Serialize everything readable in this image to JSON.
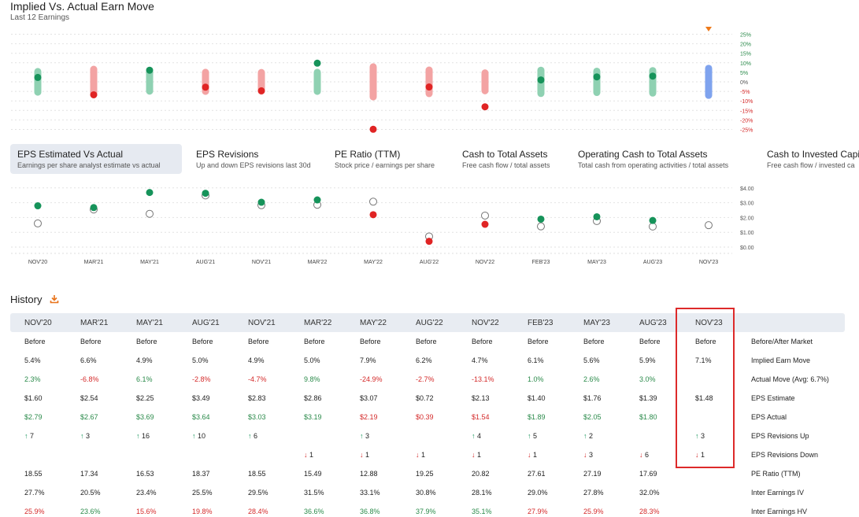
{
  "header": {
    "title": "Implied Vs. Actual Earn Move",
    "subtitle": "Last 12 Earnings"
  },
  "tabs": [
    {
      "label": "EPS Estimated Vs Actual",
      "desc": "Earnings per share analyst estimate vs actual",
      "active": true
    },
    {
      "label": "EPS Revisions",
      "desc": "Up and down EPS revisions last 30d",
      "active": false
    },
    {
      "label": "PE Ratio (TTM)",
      "desc": "Stock price / earnings per share",
      "active": false
    },
    {
      "label": "Cash to Total Assets",
      "desc": "Free cash flow / total assets",
      "active": false
    },
    {
      "label": "Operating Cash to Total Assets",
      "desc": "Total cash from operating activities / total assets",
      "active": false
    },
    {
      "label": "Cash to Invested Capit",
      "desc": "Free cash flow / invested ca",
      "active": false
    }
  ],
  "history": {
    "title": "History",
    "download_icon": "download-icon",
    "columns": [
      "NOV'20",
      "MAR'21",
      "MAY'21",
      "AUG'21",
      "NOV'21",
      "MAR'22",
      "MAY'22",
      "AUG'22",
      "NOV'22",
      "FEB'23",
      "MAY'23",
      "AUG'23",
      "NOV'23"
    ],
    "rows": [
      {
        "label": "Before/After Market",
        "values": [
          "Before",
          "Before",
          "Before",
          "Before",
          "Before",
          "Before",
          "Before",
          "Before",
          "Before",
          "Before",
          "Before",
          "Before",
          "Before"
        ]
      },
      {
        "label": "Implied Earn Move",
        "values": [
          "5.4%",
          "6.6%",
          "4.9%",
          "5.0%",
          "4.9%",
          "5.0%",
          "7.9%",
          "6.2%",
          "4.7%",
          "6.1%",
          "5.6%",
          "5.9%",
          "7.1%"
        ]
      },
      {
        "label": "Actual Move (Avg: 6.7%)",
        "values": [
          "2.3%",
          "-6.8%",
          "6.1%",
          "-2.8%",
          "-4.7%",
          "9.8%",
          "-24.9%",
          "-2.7%",
          "-13.1%",
          "1.0%",
          "2.6%",
          "3.0%",
          ""
        ]
      },
      {
        "label": "EPS Estimate",
        "values": [
          "$1.60",
          "$2.54",
          "$2.25",
          "$3.49",
          "$2.83",
          "$2.86",
          "$3.07",
          "$0.72",
          "$2.13",
          "$1.40",
          "$1.76",
          "$1.39",
          "$1.48"
        ]
      },
      {
        "label": "EPS Actual",
        "values": [
          "$2.79",
          "$2.67",
          "$3.69",
          "$3.64",
          "$3.03",
          "$3.19",
          "$2.19",
          "$0.39",
          "$1.54",
          "$1.89",
          "$2.05",
          "$1.80",
          ""
        ]
      },
      {
        "label": "EPS Revisions Up",
        "values": [
          "↑ 7",
          "↑ 3",
          "↑ 16",
          "↑ 10",
          "↑ 6",
          "",
          "↑ 3",
          "",
          "↑ 4",
          "↑ 5",
          "↑ 2",
          "",
          "↑ 3"
        ]
      },
      {
        "label": "EPS Revisions Down",
        "values": [
          "",
          "",
          "",
          "",
          "",
          "↓ 1",
          "↓ 1",
          "↓ 1",
          "↓ 1",
          "↓ 1",
          "↓ 3",
          "↓ 6",
          "↓ 1"
        ]
      },
      {
        "label": "PE Ratio (TTM)",
        "values": [
          "18.55",
          "17.34",
          "16.53",
          "18.37",
          "18.55",
          "15.49",
          "12.88",
          "19.25",
          "20.82",
          "27.61",
          "27.19",
          "17.69",
          ""
        ]
      },
      {
        "label": "Inter Earnings IV",
        "values": [
          "27.7%",
          "20.5%",
          "23.4%",
          "25.5%",
          "29.5%",
          "31.5%",
          "33.1%",
          "30.8%",
          "28.1%",
          "29.0%",
          "27.8%",
          "32.0%",
          ""
        ]
      },
      {
        "label": "Inter Earnings HV",
        "values": [
          "25.9%",
          "23.6%",
          "15.6%",
          "19.8%",
          "28.4%",
          "36.6%",
          "36.8%",
          "37.9%",
          "35.1%",
          "27.9%",
          "25.9%",
          "28.3%",
          ""
        ]
      }
    ]
  },
  "colors": {
    "green": "#2a8a4a",
    "red": "#d42a2a",
    "blue": "#7fa3ee",
    "highlight": "#dd2a2a"
  },
  "chart_data": [
    {
      "type": "scatter",
      "title": "Implied Vs. Actual Earn Move",
      "subtitle": "Last 12 Earnings",
      "categories": [
        "NOV'20",
        "MAR'21",
        "MAY'21",
        "AUG'21",
        "NOV'21",
        "MAR'22",
        "MAY'22",
        "AUG'22",
        "NOV'22",
        "FEB'23",
        "MAY'23",
        "AUG'23",
        "NOV'23"
      ],
      "implied_move": [
        5.4,
        6.6,
        4.9,
        5.0,
        4.9,
        5.0,
        7.9,
        6.2,
        4.7,
        6.1,
        5.6,
        5.9,
        7.1
      ],
      "actual_move": [
        2.3,
        -6.8,
        6.1,
        -2.8,
        -4.7,
        9.8,
        -24.9,
        -2.7,
        -13.1,
        1.0,
        2.6,
        3.0,
        null
      ],
      "y_ticks": [
        "25%",
        "20%",
        "15%",
        "10%",
        "5%",
        "0%",
        "-5%",
        "-10%",
        "-15%",
        "-20%",
        "-25%"
      ],
      "ylim": [
        -25,
        25
      ],
      "grid": true
    },
    {
      "type": "scatter",
      "categories": [
        "NOV'20",
        "MAR'21",
        "MAY'21",
        "AUG'21",
        "NOV'21",
        "MAR'22",
        "MAY'22",
        "AUG'22",
        "NOV'22",
        "FEB'23",
        "MAY'23",
        "AUG'23",
        "NOV'23"
      ],
      "eps_estimate": [
        1.6,
        2.54,
        2.25,
        3.49,
        2.83,
        2.86,
        3.07,
        0.72,
        2.13,
        1.4,
        1.76,
        1.39,
        1.48
      ],
      "eps_actual": [
        2.79,
        2.67,
        3.69,
        3.64,
        3.03,
        3.19,
        2.19,
        0.39,
        1.54,
        1.89,
        2.05,
        1.8,
        null
      ],
      "y_ticks": [
        "$4.00",
        "$3.00",
        "$2.00",
        "$1.00",
        "$0.00"
      ],
      "ylim": [
        0,
        4
      ],
      "grid": true
    }
  ]
}
